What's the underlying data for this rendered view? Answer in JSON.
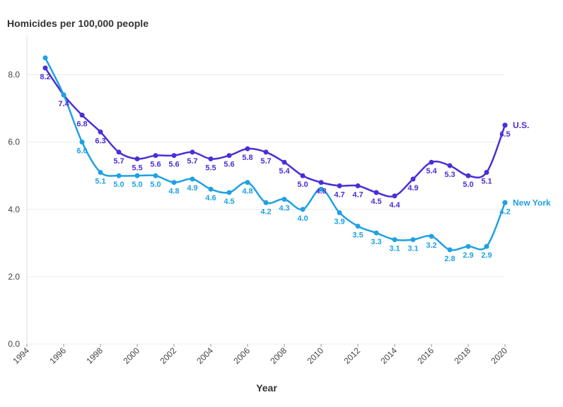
{
  "chart_data": {
    "type": "line",
    "title": "Homicides per 100,000 people",
    "xlabel": "Year",
    "ylabel": "",
    "xlim": [
      1994,
      2020
    ],
    "ylim": [
      0,
      9
    ],
    "x_ticks": [
      1994,
      1996,
      1998,
      2000,
      2002,
      2004,
      2006,
      2008,
      2010,
      2012,
      2014,
      2016,
      2018,
      2020
    ],
    "y_ticks": [
      "0.0",
      "2.0",
      "4.0",
      "6.0",
      "8.0"
    ],
    "grid": true,
    "x": [
      1995,
      1996,
      1997,
      1998,
      1999,
      2000,
      2001,
      2002,
      2003,
      2004,
      2005,
      2006,
      2007,
      2008,
      2009,
      2010,
      2011,
      2012,
      2013,
      2014,
      2015,
      2016,
      2017,
      2018,
      2019,
      2020
    ],
    "series": [
      {
        "name": "U.S.",
        "color": "#4a2fd6",
        "values": [
          8.2,
          7.4,
          6.8,
          6.3,
          5.7,
          5.5,
          5.6,
          5.6,
          5.7,
          5.5,
          5.6,
          5.8,
          5.7,
          5.4,
          5.0,
          4.8,
          4.7,
          4.7,
          4.5,
          4.4,
          4.9,
          5.4,
          5.3,
          5.0,
          5.1,
          6.5
        ],
        "labels": [
          "8.2",
          "7.4",
          "6.8",
          "6.3",
          "5.7",
          "5.5",
          "5.6",
          "5.6",
          "5.7",
          "5.5",
          "5.6",
          "5.8",
          "5.7",
          "5.4",
          "5.0",
          "4.8",
          "4.7",
          "4.7",
          "4.5",
          "4.4",
          "4.9",
          "5.4",
          "5.3",
          "5.0",
          "5.1",
          "6.5"
        ]
      },
      {
        "name": "New York",
        "color": "#1fa1e3",
        "values": [
          8.5,
          7.4,
          6.0,
          5.1,
          5.0,
          5.0,
          5.0,
          4.8,
          4.9,
          4.6,
          4.5,
          4.8,
          4.2,
          4.3,
          4.0,
          4.6,
          3.9,
          3.5,
          3.3,
          3.1,
          3.1,
          3.2,
          2.8,
          2.9,
          2.9,
          4.2
        ],
        "labels": [
          "",
          "",
          "6.0",
          "5.1",
          "5.0",
          "5.0",
          "5.0",
          "4.8",
          "4.9",
          "4.6",
          "4.5",
          "4.8",
          "4.2",
          "4.3",
          "4.0",
          "",
          "3.9",
          "3.5",
          "3.3",
          "3.1",
          "3.1",
          "3.2",
          "2.8",
          "2.9",
          "2.9",
          "4.2"
        ]
      }
    ]
  }
}
